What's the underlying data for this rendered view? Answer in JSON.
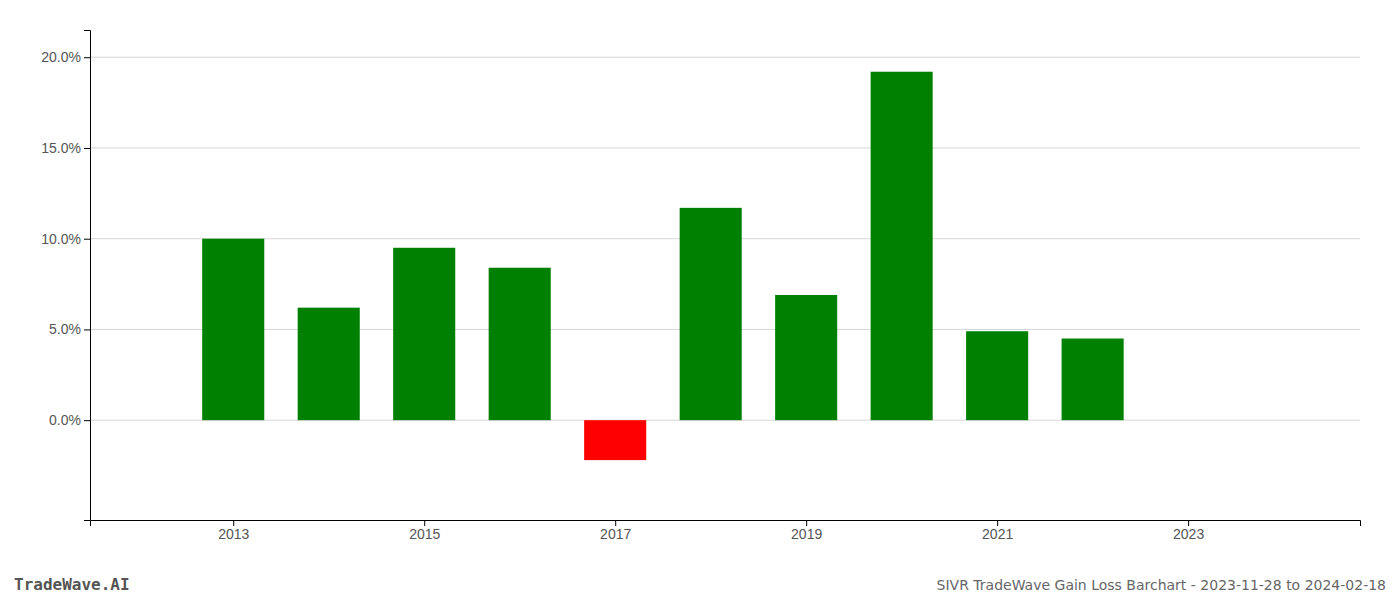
{
  "chart_data": {
    "type": "bar",
    "title": "SIVR TradeWave Gain Loss Barchart - 2023-11-28 to 2024-02-18",
    "annotations": [
      "TradeWave.AI"
    ],
    "x": [
      2013,
      2014,
      2015,
      2016,
      2017,
      2018,
      2019,
      2020,
      2021,
      2022
    ],
    "values": [
      0.1,
      0.062,
      0.095,
      0.084,
      -0.022,
      0.117,
      0.069,
      0.192,
      0.049,
      0.045
    ],
    "colors": [
      "#008000",
      "#008000",
      "#008000",
      "#008000",
      "#ff0000",
      "#008000",
      "#008000",
      "#008000",
      "#008000",
      "#008000"
    ],
    "xlim": [
      2011.5,
      2024.8
    ],
    "xticks": [
      2013,
      2015,
      2017,
      2019,
      2021,
      2023
    ],
    "ylim": [
      -0.055,
      0.215
    ],
    "yticks": [
      {
        "value": 0.0,
        "label": "0.0%"
      },
      {
        "value": 0.05,
        "label": "5.0%"
      },
      {
        "value": 0.1,
        "label": "10.0%"
      },
      {
        "value": 0.15,
        "label": "15.0%"
      },
      {
        "value": 0.2,
        "label": "20.0%"
      }
    ],
    "grid": true
  }
}
